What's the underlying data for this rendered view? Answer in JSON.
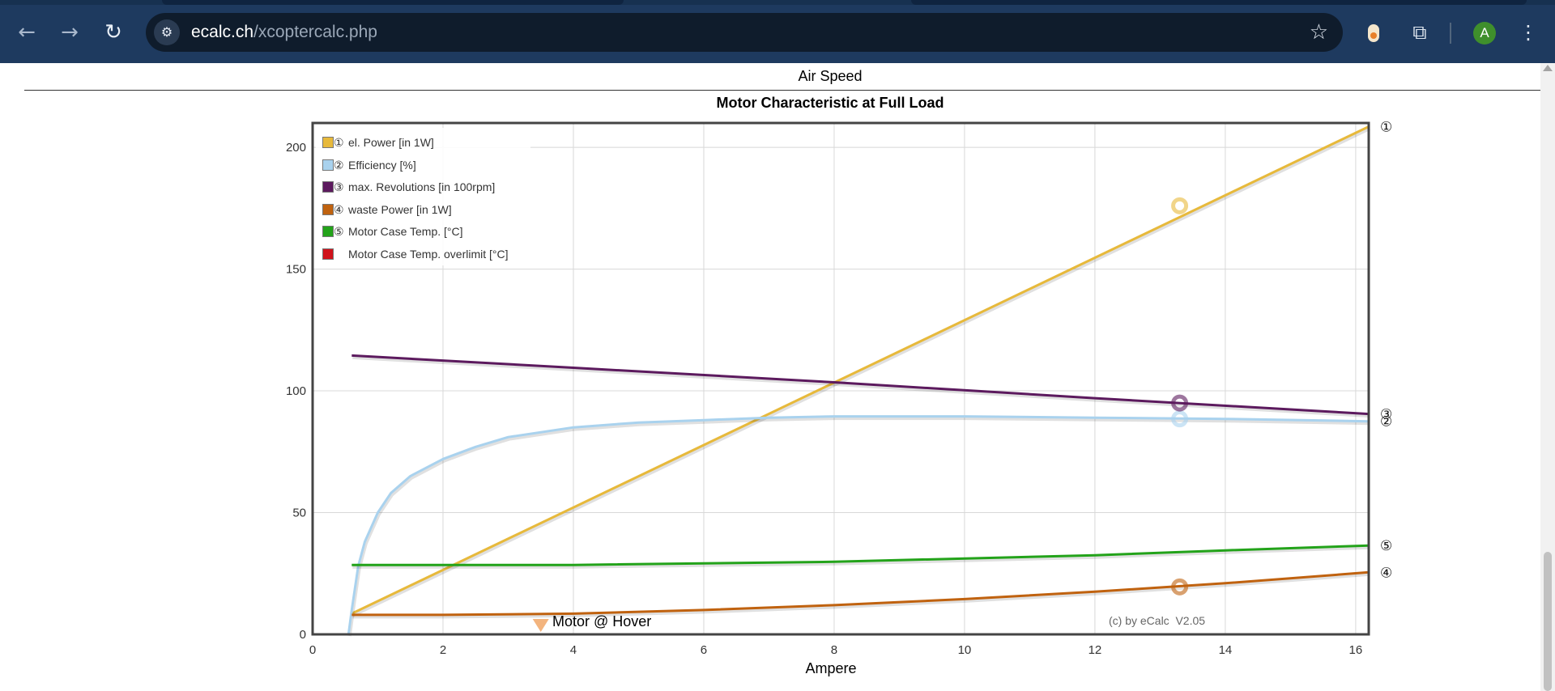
{
  "browser": {
    "url_host": "ecalc.ch",
    "url_path": "/xcoptercalc.php",
    "icons": [
      "back-arrow-icon",
      "forward-arrow-icon",
      "reload-icon",
      "site-settings-icon",
      "bookmark-star-icon",
      "extension-icon",
      "puzzle-extensions-icon",
      "profile-avatar",
      "more-menu-icon"
    ],
    "avatar_letter": "A"
  },
  "page": {
    "section_heading": "Air Speed",
    "copyright": "(c) by eCalc  V2.05",
    "hover_label": "Motor @ Hover"
  },
  "chart_data": {
    "type": "line",
    "title": "Motor Characteristic at Full Load",
    "xlabel": "Ampere",
    "ylabel": "",
    "xlim": [
      0,
      16.2
    ],
    "ylim": [
      0,
      210
    ],
    "xticks": [
      0,
      2,
      4,
      6,
      8,
      10,
      12,
      14,
      16
    ],
    "yticks": [
      0,
      50,
      100,
      150,
      200
    ],
    "grid": true,
    "legend_position": "top-left",
    "series": [
      {
        "id": "1",
        "name": "el. Power [in 1W]",
        "marker": "①",
        "color": "#e7b93b",
        "x": [
          0.6,
          16.2
        ],
        "y": [
          8.5,
          208.5
        ],
        "operating_point": {
          "x": 13.3,
          "y": 176
        }
      },
      {
        "id": "2",
        "name": "Efficiency [%]",
        "marker": "②",
        "color": "#a9d2ee",
        "x": [
          0.55,
          0.6,
          0.7,
          0.8,
          1.0,
          1.2,
          1.5,
          2.0,
          2.5,
          3.0,
          4.0,
          5.0,
          6.0,
          7.0,
          8.0,
          9.0,
          10.0,
          12.0,
          14.0,
          16.2
        ],
        "y": [
          0,
          10,
          28,
          38,
          50,
          58,
          65,
          72,
          77,
          81,
          85,
          87,
          88,
          89,
          89.5,
          89.5,
          89.5,
          89,
          88.5,
          87.5
        ],
        "operating_point": {
          "x": 13.3,
          "y": 88.5
        }
      },
      {
        "id": "3",
        "name": "max. Revolutions [in 100rpm]",
        "marker": "③",
        "color": "#5c1a5e",
        "x": [
          0.6,
          4.0,
          8.0,
          12.0,
          16.2
        ],
        "y": [
          114.5,
          109.5,
          103.5,
          97,
          90.5
        ],
        "operating_point": {
          "x": 13.3,
          "y": 95
        }
      },
      {
        "id": "4",
        "name": "waste Power [in 1W]",
        "marker": "④",
        "color": "#c0620f",
        "x": [
          0.6,
          2.0,
          4.0,
          6.0,
          8.0,
          10.0,
          12.0,
          14.0,
          16.2
        ],
        "y": [
          8,
          8,
          8.5,
          10,
          12,
          14.5,
          17.5,
          21,
          25.5
        ],
        "operating_point": {
          "x": 13.3,
          "y": 19.5
        }
      },
      {
        "id": "5",
        "name": "Motor Case Temp. [°C]",
        "marker": "⑤",
        "color": "#23a31a",
        "x": [
          0.6,
          4.0,
          8.0,
          12.0,
          14.0,
          16.2
        ],
        "y": [
          28.5,
          28.5,
          29.8,
          32.5,
          34.5,
          36.5
        ]
      },
      {
        "id": "6",
        "name": "Motor Case Temp. overlimit [°C]",
        "marker": "",
        "color": "#d0121b",
        "x": [],
        "y": []
      }
    ],
    "annotations": [
      {
        "text": "Motor @ Hover",
        "x": 3.5,
        "y": 3,
        "shape": "triangle-down",
        "color": "#f3b47e"
      }
    ]
  }
}
